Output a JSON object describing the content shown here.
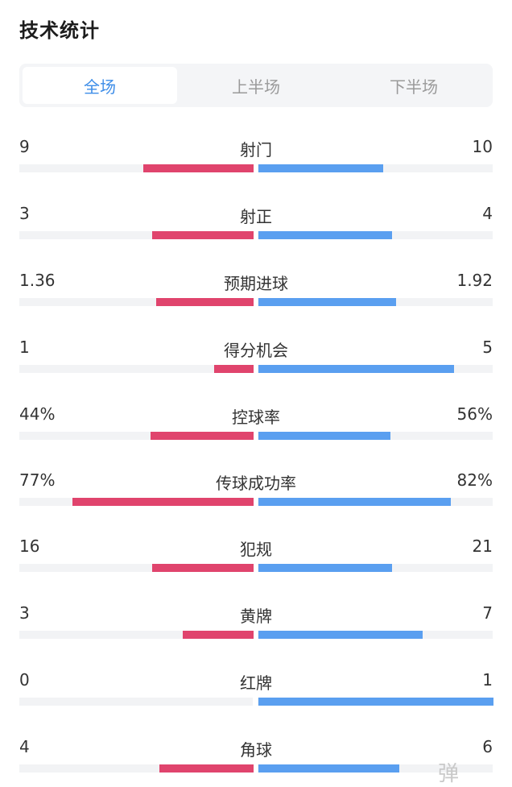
{
  "header": {
    "title": "技术统计"
  },
  "tabs": [
    {
      "label": "全场",
      "active": true
    },
    {
      "label": "上半场",
      "active": false
    },
    {
      "label": "下半场",
      "active": false
    }
  ],
  "colors": {
    "home": "#e0446d",
    "away": "#5a9ff0",
    "active_tab": "#3d8de8"
  },
  "stats": [
    {
      "label": "射门",
      "left": "9",
      "right": "10",
      "left_frac": 0.47,
      "right_frac": 0.53
    },
    {
      "label": "射正",
      "left": "3",
      "right": "4",
      "left_frac": 0.43,
      "right_frac": 0.57
    },
    {
      "label": "预期进球",
      "left": "1.36",
      "right": "1.92",
      "left_frac": 0.415,
      "right_frac": 0.585
    },
    {
      "label": "得分机会",
      "left": "1",
      "right": "5",
      "left_frac": 0.167,
      "right_frac": 0.833
    },
    {
      "label": "控球率",
      "left": "44%",
      "right": "56%",
      "left_frac": 0.44,
      "right_frac": 0.56
    },
    {
      "label": "传球成功率",
      "left": "77%",
      "right": "82%",
      "left_frac": 0.77,
      "right_frac": 0.82
    },
    {
      "label": "犯规",
      "left": "16",
      "right": "21",
      "left_frac": 0.43,
      "right_frac": 0.57
    },
    {
      "label": "黄牌",
      "left": "3",
      "right": "7",
      "left_frac": 0.3,
      "right_frac": 0.7
    },
    {
      "label": "红牌",
      "left": "0",
      "right": "1",
      "left_frac": 0.0,
      "right_frac": 1.0
    },
    {
      "label": "角球",
      "left": "4",
      "right": "6",
      "left_frac": 0.4,
      "right_frac": 0.6
    }
  ],
  "watermark": "弹"
}
